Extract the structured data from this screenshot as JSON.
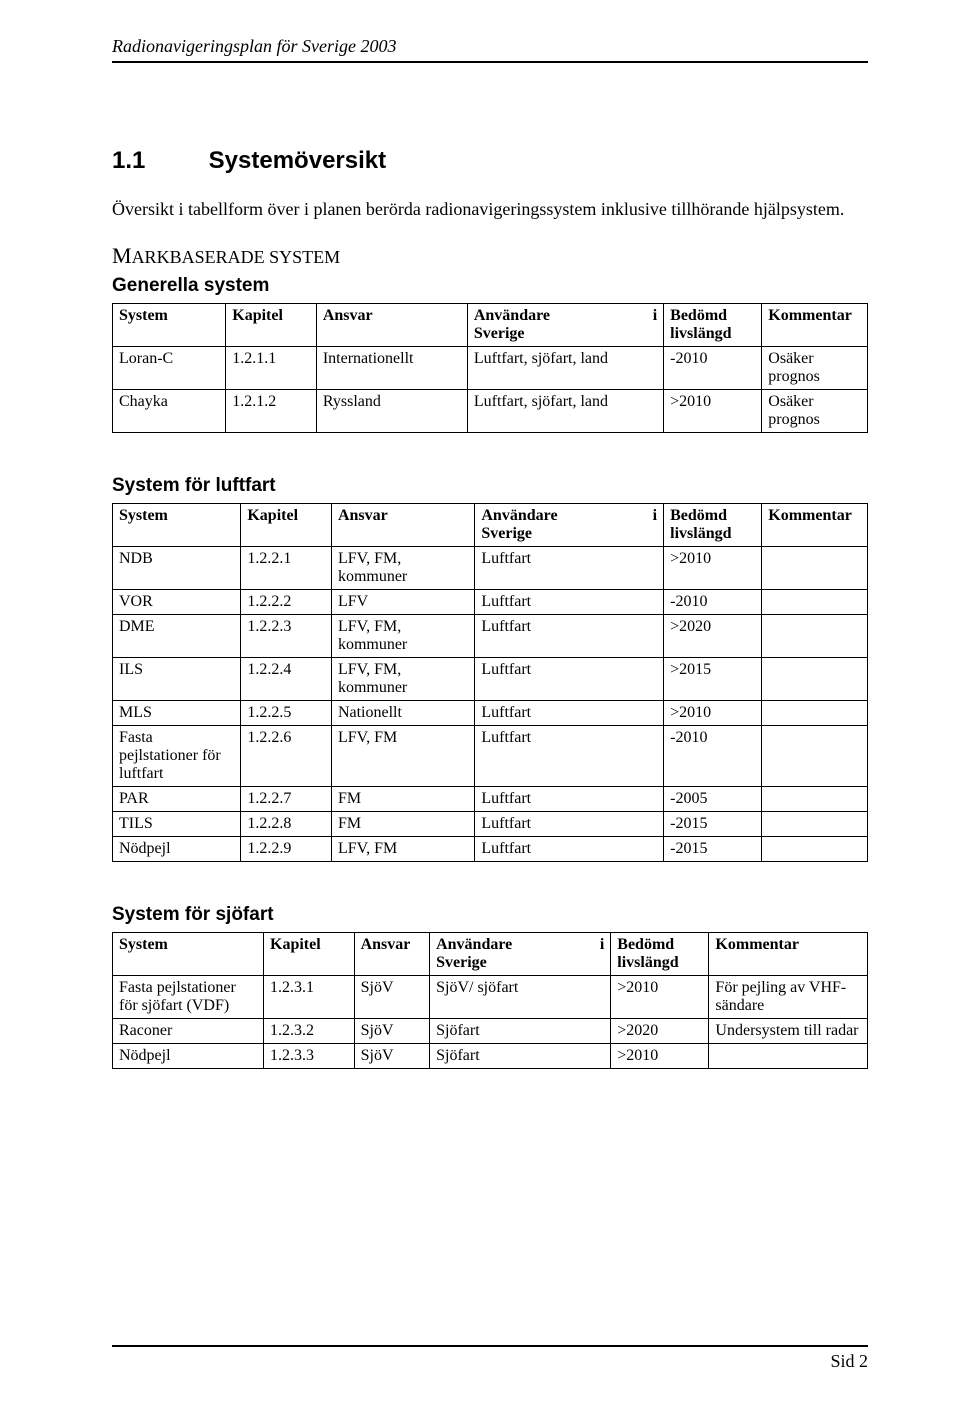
{
  "runhead": "Radionavigeringsplan för Sverige 2003",
  "heading": {
    "num": "1.1",
    "title": "Systemöversikt"
  },
  "intro": "Översikt i tabellform över i planen berörda radionavigeringssystem inklusive tillhörande hjälpsystem.",
  "mark": {
    "cap": "M",
    "rest": "ARKBASERADE SYSTEM"
  },
  "generella_title": "Generella system",
  "cols": {
    "system": "System",
    "kapitel": "Kapitel",
    "ansvar": "Ansvar",
    "anv_line1": "Användare",
    "anv_i": "i",
    "anv_line2": "Sverige",
    "bed_line1": "Bedömd",
    "bed_line2": "livslängd",
    "kommentar": "Kommentar"
  },
  "generella": [
    {
      "system": "Loran-C",
      "kapitel": "1.2.1.1",
      "ansvar": "Internationellt",
      "anv": "Luftfart, sjöfart, land",
      "bed": "-2010",
      "komm": "Osäker prognos"
    },
    {
      "system": "Chayka",
      "kapitel": "1.2.1.2",
      "ansvar": "Ryssland",
      "anv": "Luftfart, sjöfart, land",
      "bed": ">2010",
      "komm": "Osäker prognos"
    }
  ],
  "luftfart_title": "System för luftfart",
  "luftfart": [
    {
      "system": "NDB",
      "kapitel": "1.2.2.1",
      "ansvar": "LFV, FM, kommuner",
      "anv": "Luftfart",
      "bed": ">2010",
      "komm": ""
    },
    {
      "system": "VOR",
      "kapitel": "1.2.2.2",
      "ansvar": "LFV",
      "anv": "Luftfart",
      "bed": "-2010",
      "komm": ""
    },
    {
      "system": "DME",
      "kapitel": "1.2.2.3",
      "ansvar": "LFV, FM, kommuner",
      "anv": "Luftfart",
      "bed": ">2020",
      "komm": ""
    },
    {
      "system": "ILS",
      "kapitel": "1.2.2.4",
      "ansvar": "LFV, FM, kommuner",
      "anv": "Luftfart",
      "bed": ">2015",
      "komm": ""
    },
    {
      "system": "MLS",
      "kapitel": "1.2.2.5",
      "ansvar": "Nationellt",
      "anv": "Luftfart",
      "bed": ">2010",
      "komm": ""
    },
    {
      "system": "Fasta pejlstationer för luftfart",
      "kapitel": "1.2.2.6",
      "ansvar": "LFV, FM",
      "anv": "Luftfart",
      "bed": "-2010",
      "komm": ""
    },
    {
      "system": "PAR",
      "kapitel": "1.2.2.7",
      "ansvar": "FM",
      "anv": "Luftfart",
      "bed": "-2005",
      "komm": ""
    },
    {
      "system": "TILS",
      "kapitel": "1.2.2.8",
      "ansvar": "FM",
      "anv": "Luftfart",
      "bed": "-2015",
      "komm": ""
    },
    {
      "system": "Nödpejl",
      "kapitel": "1.2.2.9",
      "ansvar": "LFV, FM",
      "anv": "Luftfart",
      "bed": "-2015",
      "komm": ""
    }
  ],
  "sjofart_title": "System för sjöfart",
  "sjofart": [
    {
      "system": "Fasta pejlstationer för sjöfart (VDF)",
      "kapitel": "1.2.3.1",
      "ansvar": "SjöV",
      "anv": "SjöV/ sjöfart",
      "bed": ">2010",
      "komm": "För pejling av VHF-sändare"
    },
    {
      "system": "Raconer",
      "kapitel": "1.2.3.2",
      "ansvar": "SjöV",
      "anv": "Sjöfart",
      "bed": ">2020",
      "komm": "Undersystem till radar"
    },
    {
      "system": "Nödpejl",
      "kapitel": "1.2.3.3",
      "ansvar": "SjöV",
      "anv": "Sjöfart",
      "bed": ">2010",
      "komm": ""
    }
  ],
  "footer": "Sid 2"
}
